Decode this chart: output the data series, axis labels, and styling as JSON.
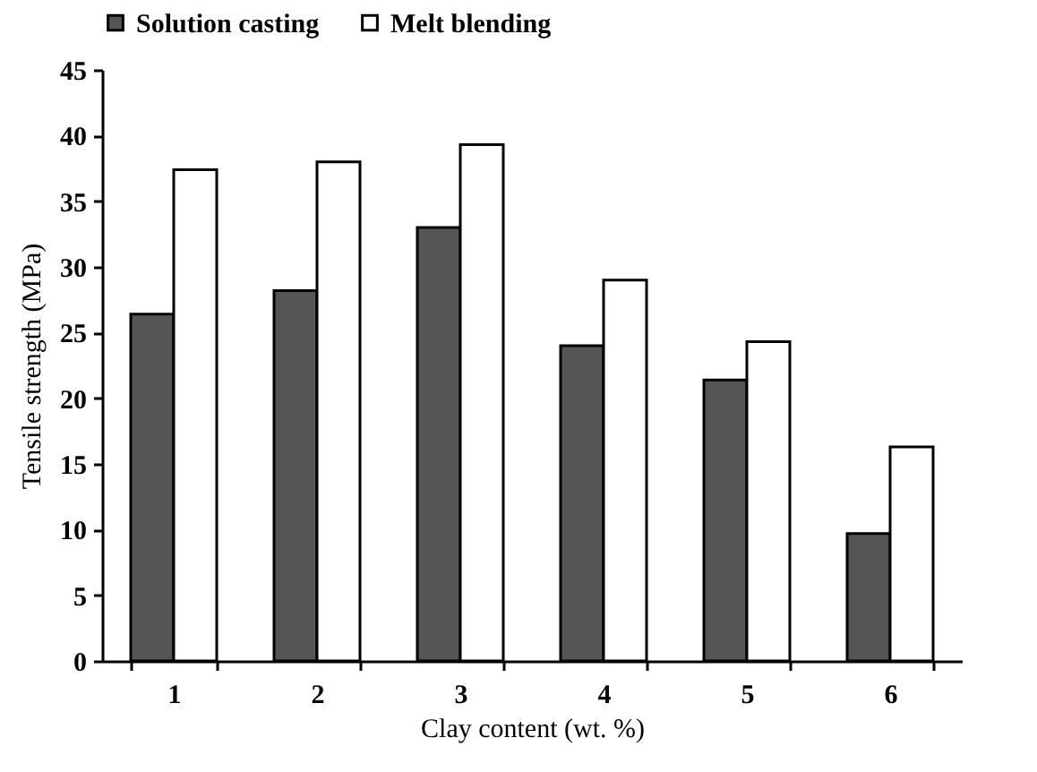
{
  "chart_data": {
    "type": "bar",
    "xlabel": "Clay content (wt. %)",
    "ylabel": "Tensile strength (MPa)",
    "categories": [
      "1",
      "2",
      "3",
      "4",
      "5",
      "6"
    ],
    "series": [
      {
        "name": "Solution casting",
        "color": "#555555",
        "values": [
          26.4,
          28.2,
          33.0,
          24.0,
          21.4,
          9.7
        ]
      },
      {
        "name": "Melt blending",
        "color": "#ffffff",
        "values": [
          37.4,
          38.0,
          39.3,
          29.0,
          24.3,
          16.3
        ]
      }
    ],
    "ylim": [
      0,
      45
    ],
    "yticks": [
      0,
      5,
      10,
      15,
      20,
      25,
      30,
      35,
      40,
      45
    ],
    "grid": false,
    "legend": "top"
  }
}
